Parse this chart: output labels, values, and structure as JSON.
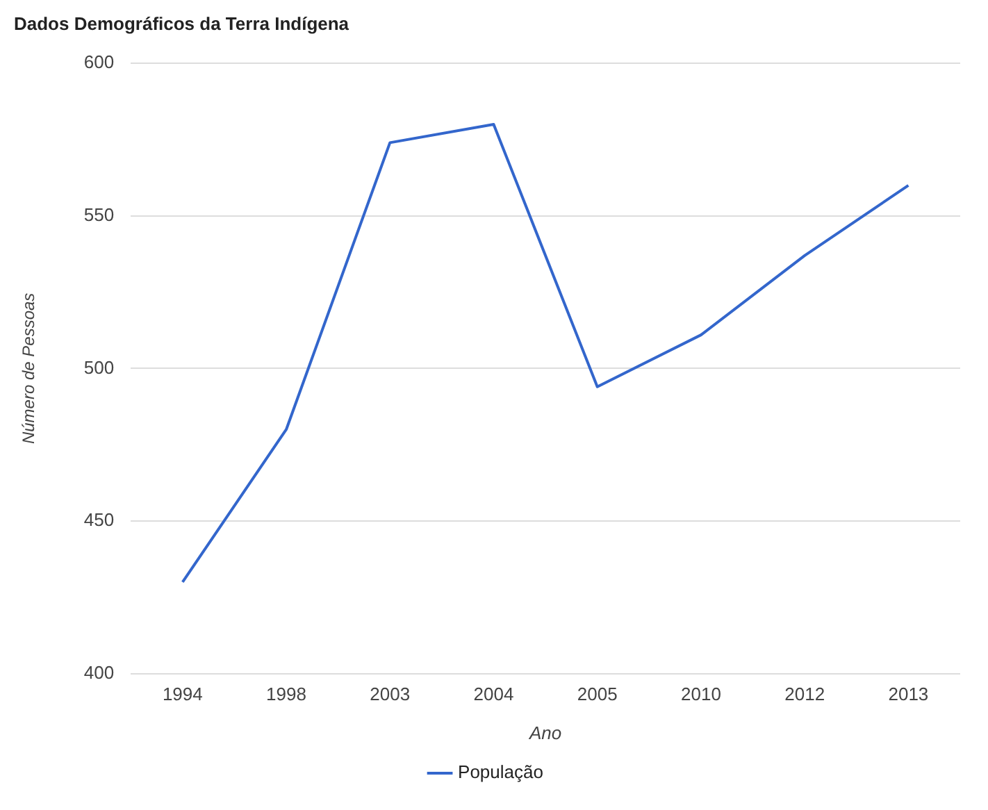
{
  "chart_data": {
    "type": "line",
    "title": "Dados Demográficos da Terra Indígena",
    "xlabel": "Ano",
    "ylabel": "Número de Pessoas",
    "categories": [
      "1994",
      "1998",
      "2003",
      "2004",
      "2005",
      "2010",
      "2012",
      "2013"
    ],
    "series": [
      {
        "name": "População",
        "color": "#3366cc",
        "values": [
          430,
          480,
          574,
          580,
          494,
          511,
          537,
          560
        ]
      }
    ],
    "ylim": [
      400,
      600
    ],
    "yticks": [
      400,
      450,
      500,
      550,
      600
    ],
    "grid": "y",
    "legend": "bottom",
    "marker": "none",
    "line_style": "solid"
  }
}
